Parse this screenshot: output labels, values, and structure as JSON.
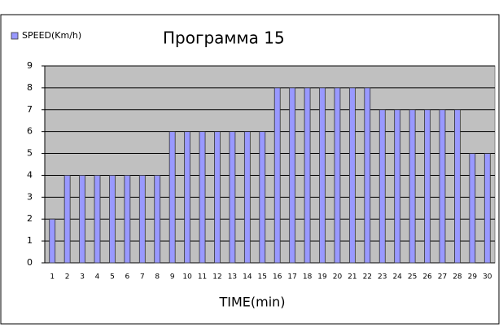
{
  "chart_data": {
    "type": "bar",
    "title": "Программа 15",
    "x_label": "TIME(min)",
    "categories": [
      "1",
      "2",
      "3",
      "4",
      "5",
      "6",
      "7",
      "8",
      "9",
      "10",
      "11",
      "12",
      "13",
      "14",
      "15",
      "16",
      "17",
      "18",
      "19",
      "20",
      "21",
      "22",
      "23",
      "24",
      "25",
      "26",
      "27",
      "28",
      "29",
      "30"
    ],
    "series": [
      {
        "name": "SPEED(Km/h)",
        "color": "#9999ff",
        "values": [
          2,
          4,
          4,
          4,
          4,
          4,
          4,
          4,
          6,
          6,
          6,
          6,
          6,
          6,
          6,
          8,
          8,
          8,
          8,
          8,
          8,
          8,
          7,
          7,
          7,
          7,
          7,
          7,
          5,
          5
        ]
      }
    ],
    "ylim": [
      0,
      9
    ],
    "yticks": [
      0,
      1,
      2,
      3,
      4,
      5,
      6,
      7,
      8,
      9
    ],
    "grid": true,
    "legend": "top-left"
  }
}
